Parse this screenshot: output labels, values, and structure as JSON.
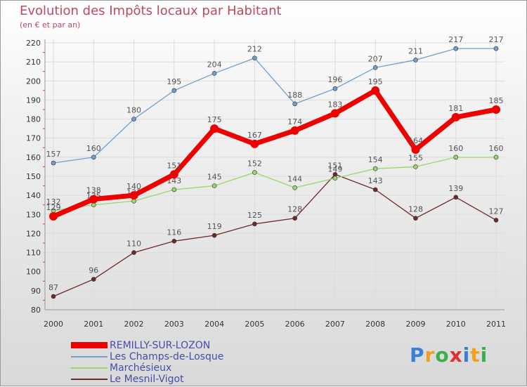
{
  "chart_data": {
    "type": "line",
    "title": "Evolution des Impôts locaux par Habitant",
    "subtitle": "(en € et par an)",
    "x": [
      "2000",
      "2001",
      "2002",
      "2003",
      "2004",
      "2005",
      "2006",
      "2007",
      "2008",
      "2009",
      "2010",
      "2011"
    ],
    "ylim": [
      80,
      220
    ],
    "yticks": [
      80,
      90,
      100,
      110,
      120,
      130,
      140,
      150,
      160,
      170,
      180,
      190,
      200,
      210,
      220
    ],
    "grid": true,
    "series": [
      {
        "name": "Le Mesnil-Vigot",
        "color": "#6e2a2a",
        "values": [
          87,
          96,
          110,
          116,
          119,
          125,
          128,
          151,
          143,
          128,
          139,
          127
        ]
      },
      {
        "name": "Marchésieux",
        "color": "#99d66b",
        "values": [
          132,
          135,
          137,
          143,
          145,
          152,
          144,
          149,
          154,
          155,
          160,
          160
        ]
      },
      {
        "name": "Les Champs-de-Losque",
        "color": "#6f9fd1",
        "values": [
          157,
          160,
          180,
          195,
          204,
          212,
          188,
          196,
          207,
          211,
          217,
          217
        ]
      },
      {
        "name": "REMILLY-SUR-LOZON",
        "color": "#ee0000",
        "values": [
          129,
          138,
          140,
          151,
          175,
          167,
          174,
          183,
          195,
          164,
          181,
          185
        ]
      }
    ]
  },
  "legend": [
    {
      "label": "REMILLY-SUR-LOZON",
      "color": "#ee0000"
    },
    {
      "label": "Les Champs-de-Losque",
      "color": "#6f9fd1"
    },
    {
      "label": "Marchésieux",
      "color": "#99d66b"
    },
    {
      "label": "Le Mesnil-Vigot",
      "color": "#6e2a2a"
    }
  ],
  "brand": {
    "letters": [
      "P",
      "r",
      "o",
      "x",
      "i",
      "t",
      "i"
    ],
    "colors": [
      "#3a7fd4",
      "#f0a020",
      "#3ab04a",
      "#e03030",
      "#3a7fd4",
      "#f0a020",
      "#3ab04a"
    ]
  }
}
